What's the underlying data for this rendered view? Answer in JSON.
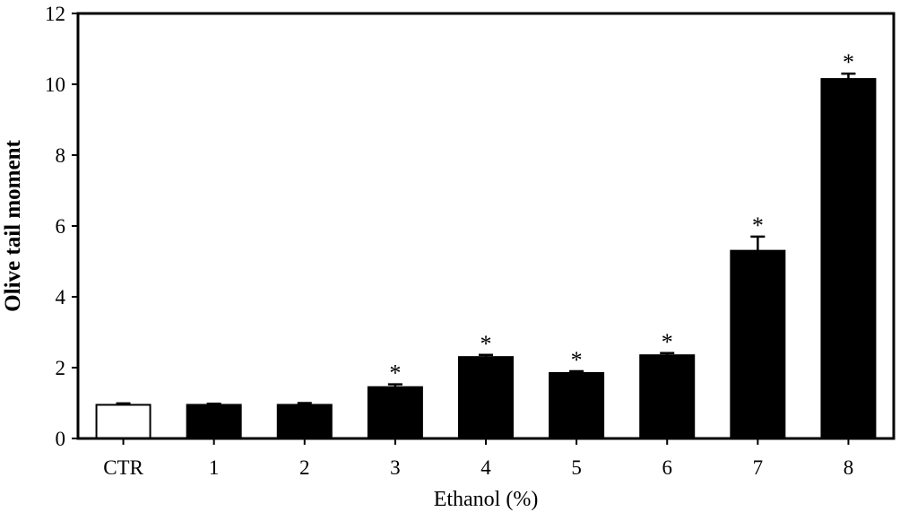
{
  "chart_data": {
    "type": "bar",
    "categories": [
      "CTR",
      "1",
      "2",
      "3",
      "4",
      "5",
      "6",
      "7",
      "8"
    ],
    "values": [
      0.95,
      0.95,
      0.95,
      1.45,
      2.3,
      1.85,
      2.35,
      5.3,
      10.15
    ],
    "errors": [
      0.04,
      0.03,
      0.05,
      0.08,
      0.06,
      0.05,
      0.06,
      0.4,
      0.15
    ],
    "significance": [
      "",
      "",
      "",
      "*",
      "*",
      "*",
      "*",
      "*",
      "*"
    ],
    "bar_fills": [
      "#ffffff",
      "#000000",
      "#000000",
      "#000000",
      "#000000",
      "#000000",
      "#000000",
      "#000000",
      "#000000"
    ],
    "xlabel": "Ethanol (%)",
    "ylabel": "Olive tail moment",
    "ylim": [
      0,
      12
    ],
    "yticks": [
      0,
      2,
      4,
      6,
      8,
      10,
      12
    ],
    "grid": false
  }
}
